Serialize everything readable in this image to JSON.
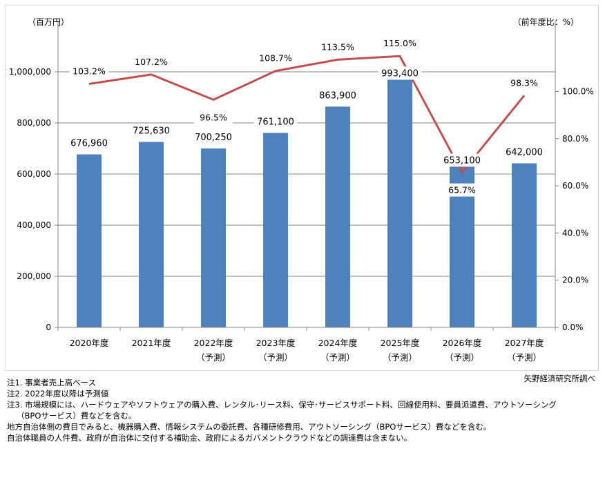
{
  "chart_data": {
    "type": "bar",
    "categories": [
      [
        "2020年度"
      ],
      [
        "2021年度"
      ],
      [
        "2022年度",
        "（予測）"
      ],
      [
        "2023年度",
        "（予測）"
      ],
      [
        "2024年度",
        "（予測）"
      ],
      [
        "2025年度",
        "（予測）"
      ],
      [
        "2026年度",
        "（予測）"
      ],
      [
        "2027年度",
        "（予測）"
      ]
    ],
    "series": [
      {
        "type": "bar",
        "axis": "left",
        "color": "#4f81bd",
        "values": [
          676960,
          725630,
          700250,
          761100,
          863900,
          993400,
          653100,
          642000
        ],
        "labels": [
          "676,960",
          "725,630",
          "700,250",
          "761,100",
          "863,900",
          "993,400",
          "653,100",
          "642,000"
        ]
      },
      {
        "type": "line",
        "axis": "right",
        "color": "#c0504d",
        "values": [
          103.2,
          107.2,
          96.5,
          108.7,
          113.5,
          115.0,
          65.7,
          98.3
        ],
        "labels": [
          "103.2%",
          "107.2%",
          "96.5%",
          "108.7%",
          "113.5%",
          "115.0%",
          "65.7%",
          "98.3%"
        ]
      }
    ],
    "y_left": {
      "unit_label": "（百万円）",
      "range": [
        0,
        1200000
      ],
      "ticks": [
        0,
        200000,
        400000,
        600000,
        800000,
        1000000
      ],
      "tick_labels": [
        "0",
        "200,000",
        "400,000",
        "600,000",
        "800,000",
        "1,000,000"
      ]
    },
    "y_right": {
      "unit_label": "（前年度比：%）",
      "range": [
        0,
        130
      ],
      "ticks": [
        0,
        20,
        40,
        60,
        80,
        100
      ],
      "tick_labels": [
        "0.0%",
        "20.0%",
        "40.0%",
        "60.0%",
        "80.0%",
        "100.0%"
      ]
    },
    "grid": true,
    "legend": "none"
  },
  "source": "矢野経済研究所調べ",
  "notes": [
    "注1.  事業者売上高ベース",
    "注2.  2022年度以降は予測値",
    "注3.  市場規模には、ハードウェアやソフトウェアの購入費、レンタル･リース料、保守･サービスサポート料、回線使用料、要員派遣費、アウトソーシング",
    "（BPOサービス）費などを含む。",
    "地方自治体側の費目でみると、機器購入費、情報システムの委託費、各種研修費用、アウトソーシング（BPOサービス）費などを含む。",
    "自治体職員の人件費、政府が自治体に交付する補助金、政府によるガバメントクラウドなどの調達費は含まない。"
  ]
}
